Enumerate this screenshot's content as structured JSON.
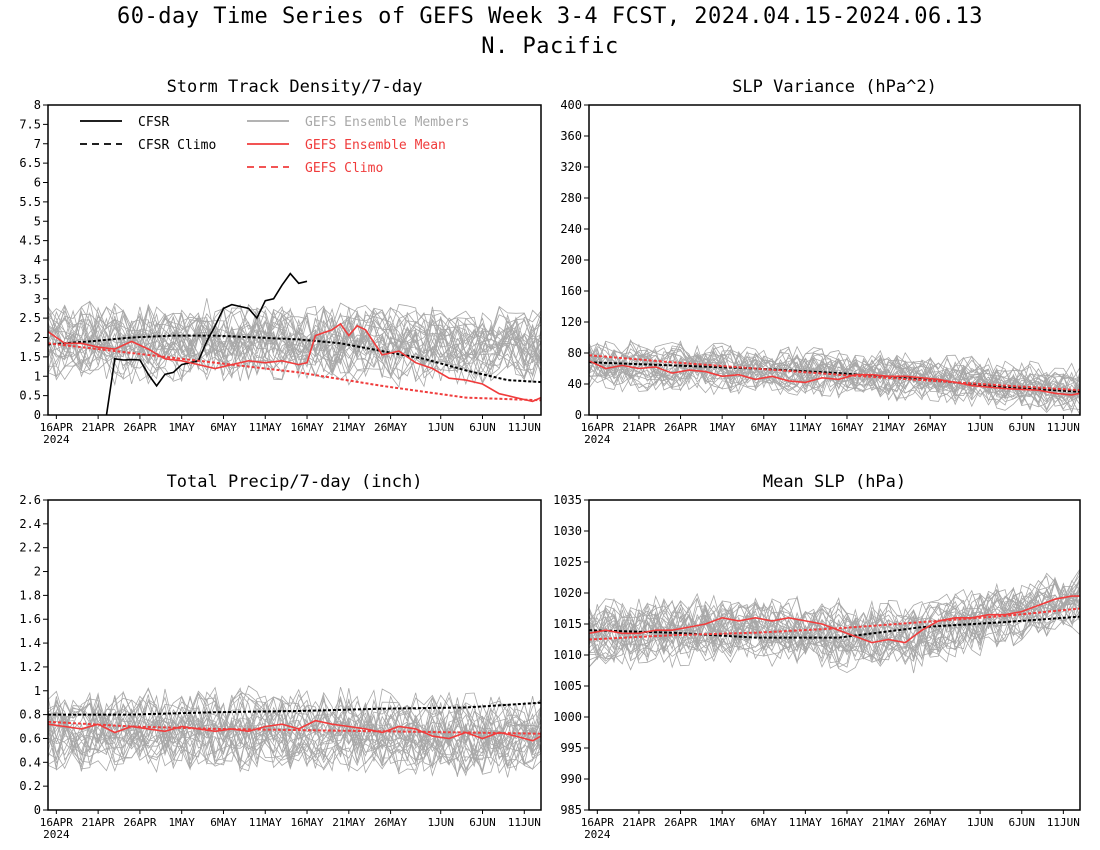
{
  "title_line1": "60-day Time Series of GEFS Week 3-4 FCST, 2024.04.15-2024.06.13",
  "title_line2": "N. Pacific",
  "colors": {
    "cfsr": "#000000",
    "cfsr_climo": "#000000",
    "members": "#a8a8a8",
    "ens_mean": "#f03c3c",
    "gefs_climo": "#f03c3c"
  },
  "legend": {
    "cfsr": "CFSR",
    "cfsr_climo": "CFSR Climo",
    "members": "GEFS Ensemble Members",
    "ens_mean": "GEFS Ensemble Mean",
    "gefs_climo": "GEFS Climo"
  },
  "x_axis": {
    "tick_labels": [
      "16APR",
      "21APR",
      "26APR",
      "1MAY",
      "6MAY",
      "11MAY",
      "16MAY",
      "21MAY",
      "26MAY",
      "1JUN",
      "6JUN",
      "11JUN"
    ],
    "tick_days": [
      1,
      6,
      11,
      16,
      21,
      26,
      31,
      36,
      41,
      47,
      52,
      57
    ],
    "year_label": "2024",
    "day_range": [
      0,
      59
    ]
  },
  "chart_data": [
    {
      "type": "line",
      "title": "Storm Track Density/7-day",
      "ylim": [
        0,
        8
      ],
      "yticks": [
        "0",
        "0.5",
        "1",
        "1.5",
        "2",
        "2.5",
        "3",
        "3.5",
        "4",
        "4.5",
        "5",
        "5.5",
        "6",
        "6.5",
        "7",
        "7.5",
        "8"
      ],
      "show_legend": true,
      "members_center": [
        1.9,
        1.9,
        1.9,
        1.9,
        1.85,
        1.8,
        1.8
      ],
      "members_spread": 0.9,
      "members_count": 30,
      "series": [
        {
          "name": "CFSR",
          "style": "solid",
          "color": "#000000",
          "x": [
            7,
            8,
            9,
            10,
            11,
            12,
            13,
            14,
            15,
            16,
            17,
            18,
            19,
            20,
            21,
            22,
            23,
            24,
            25,
            26,
            27,
            28,
            29,
            30,
            31
          ],
          "y": [
            0,
            1.45,
            1.42,
            1.43,
            1.42,
            1.05,
            0.75,
            1.05,
            1.1,
            1.3,
            1.35,
            1.4,
            1.9,
            2.3,
            2.75,
            2.85,
            2.8,
            2.75,
            2.5,
            2.95,
            3.0,
            3.35,
            3.65,
            3.4,
            3.45
          ]
        },
        {
          "name": "CFSR Climo",
          "style": "dashed",
          "color": "#000000",
          "x": [
            0,
            5,
            10,
            15,
            20,
            25,
            30,
            35,
            40,
            45,
            50,
            55,
            59
          ],
          "y": [
            1.82,
            1.9,
            2.0,
            2.05,
            2.05,
            2.0,
            1.95,
            1.85,
            1.65,
            1.45,
            1.15,
            0.9,
            0.85
          ]
        },
        {
          "name": "GEFS Ensemble Mean",
          "style": "solid",
          "color": "#f03c3c",
          "x": [
            0,
            2,
            4,
            6,
            8,
            10,
            12,
            14,
            16,
            18,
            20,
            22,
            24,
            26,
            28,
            30,
            31,
            32,
            34,
            35,
            36,
            37,
            38,
            40,
            42,
            44,
            46,
            48,
            50,
            52,
            54,
            56,
            58,
            59
          ],
          "y": [
            2.15,
            1.85,
            1.85,
            1.75,
            1.7,
            1.9,
            1.7,
            1.45,
            1.4,
            1.3,
            1.2,
            1.3,
            1.4,
            1.35,
            1.4,
            1.3,
            1.35,
            2.05,
            2.2,
            2.35,
            2.05,
            2.3,
            2.2,
            1.55,
            1.65,
            1.35,
            1.2,
            0.95,
            0.9,
            0.8,
            0.55,
            0.45,
            0.35,
            0.45
          ]
        },
        {
          "name": "GEFS Climo",
          "style": "dashed",
          "color": "#f03c3c",
          "x": [
            0,
            10,
            20,
            30,
            40,
            50,
            59
          ],
          "y": [
            1.85,
            1.6,
            1.35,
            1.1,
            0.75,
            0.45,
            0.38
          ]
        }
      ]
    },
    {
      "type": "line",
      "title": "SLP Variance (hPa^2)",
      "ylim": [
        0,
        400
      ],
      "yticks": [
        "0",
        "40",
        "80",
        "120",
        "160",
        "200",
        "240",
        "280",
        "320",
        "360",
        "400"
      ],
      "show_legend": false,
      "members_center": [
        65,
        62,
        58,
        53,
        48,
        40,
        32
      ],
      "members_spread": 28,
      "members_count": 30,
      "series": [
        {
          "name": "CFSR Climo",
          "style": "dashed",
          "color": "#000000",
          "x": [
            0,
            10,
            20,
            30,
            40,
            50,
            59
          ],
          "y": [
            68,
            64,
            60,
            54,
            46,
            36,
            30
          ]
        },
        {
          "name": "GEFS Ensemble Mean",
          "style": "solid",
          "color": "#f03c3c",
          "x": [
            0,
            2,
            4,
            6,
            8,
            10,
            12,
            14,
            16,
            18,
            20,
            22,
            24,
            26,
            28,
            30,
            32,
            34,
            36,
            38,
            40,
            42,
            44,
            46,
            48,
            50,
            52,
            54,
            56,
            58,
            59
          ],
          "y": [
            70,
            60,
            64,
            60,
            62,
            54,
            58,
            56,
            50,
            52,
            46,
            50,
            44,
            42,
            48,
            46,
            52,
            52,
            50,
            50,
            48,
            46,
            42,
            38,
            36,
            34,
            33,
            32,
            28,
            26,
            28
          ]
        },
        {
          "name": "GEFS Climo",
          "style": "dashed",
          "color": "#f03c3c",
          "x": [
            0,
            10,
            20,
            30,
            40,
            50,
            59
          ],
          "y": [
            77,
            68,
            60,
            52,
            45,
            38,
            32
          ]
        }
      ]
    },
    {
      "type": "line",
      "title": "Total Precip/7-day (inch)",
      "ylim": [
        0,
        2.6
      ],
      "yticks": [
        "0",
        "0.2",
        "0.4",
        "0.6",
        "0.8",
        "1",
        "1.2",
        "1.4",
        "1.6",
        "1.8",
        "2",
        "2.2",
        "2.4",
        "2.6"
      ],
      "show_legend": false,
      "members_center": [
        0.68,
        0.68,
        0.68,
        0.68,
        0.66,
        0.64,
        0.62
      ],
      "members_spread": 0.3,
      "members_count": 30,
      "series": [
        {
          "name": "CFSR Climo",
          "style": "dashed",
          "color": "#000000",
          "x": [
            0,
            10,
            20,
            30,
            40,
            50,
            59
          ],
          "y": [
            0.8,
            0.8,
            0.82,
            0.83,
            0.85,
            0.86,
            0.9
          ]
        },
        {
          "name": "GEFS Ensemble Mean",
          "style": "solid",
          "color": "#f03c3c",
          "x": [
            0,
            2,
            4,
            6,
            8,
            10,
            12,
            14,
            16,
            18,
            20,
            22,
            24,
            26,
            28,
            30,
            32,
            34,
            36,
            38,
            40,
            42,
            44,
            46,
            48,
            50,
            52,
            54,
            56,
            58,
            59
          ],
          "y": [
            0.72,
            0.7,
            0.68,
            0.72,
            0.65,
            0.7,
            0.68,
            0.66,
            0.7,
            0.68,
            0.66,
            0.68,
            0.66,
            0.7,
            0.72,
            0.68,
            0.75,
            0.72,
            0.7,
            0.68,
            0.65,
            0.7,
            0.68,
            0.62,
            0.6,
            0.65,
            0.6,
            0.65,
            0.62,
            0.58,
            0.62
          ]
        },
        {
          "name": "GEFS Climo",
          "style": "dashed",
          "color": "#f03c3c",
          "x": [
            0,
            10,
            20,
            30,
            40,
            50,
            59
          ],
          "y": [
            0.74,
            0.7,
            0.68,
            0.67,
            0.66,
            0.65,
            0.64
          ]
        }
      ]
    },
    {
      "type": "line",
      "title": "Mean SLP (hPa)",
      "ylim": [
        985,
        1035
      ],
      "yticks": [
        "985",
        "990",
        "995",
        "1000",
        "1005",
        "1010",
        "1015",
        "1020",
        "1025",
        "1030",
        "1035"
      ],
      "show_legend": false,
      "members_center": [
        1013,
        1014,
        1014,
        1013,
        1013,
        1016,
        1019
      ],
      "members_spread": 5,
      "members_count": 30,
      "series": [
        {
          "name": "CFSR Climo",
          "style": "dashed",
          "color": "#000000",
          "x": [
            0,
            10,
            20,
            30,
            40,
            50,
            59
          ],
          "y": [
            1014,
            1013.6,
            1012.8,
            1012.8,
            1014.5,
            1015.3,
            1016.2
          ]
        },
        {
          "name": "GEFS Ensemble Mean",
          "style": "solid",
          "color": "#f03c3c",
          "x": [
            0,
            2,
            4,
            6,
            8,
            10,
            12,
            14,
            16,
            18,
            20,
            22,
            24,
            26,
            28,
            30,
            32,
            34,
            36,
            38,
            40,
            42,
            44,
            46,
            48,
            50,
            52,
            54,
            56,
            58,
            59
          ],
          "y": [
            1013.5,
            1014,
            1013.5,
            1013.5,
            1014,
            1014,
            1014.5,
            1015,
            1016,
            1015.5,
            1016,
            1015.5,
            1016,
            1015.5,
            1015,
            1014,
            1013,
            1012,
            1012.5,
            1012,
            1014,
            1015.5,
            1016,
            1016,
            1016.5,
            1016.5,
            1017,
            1018,
            1019,
            1019.5,
            1019.5
          ]
        },
        {
          "name": "GEFS Climo",
          "style": "dashed",
          "color": "#f03c3c",
          "x": [
            0,
            10,
            20,
            30,
            40,
            50,
            59
          ],
          "y": [
            1012.5,
            1013.2,
            1013.6,
            1014.3,
            1015.3,
            1016.3,
            1017.5
          ]
        }
      ]
    }
  ]
}
